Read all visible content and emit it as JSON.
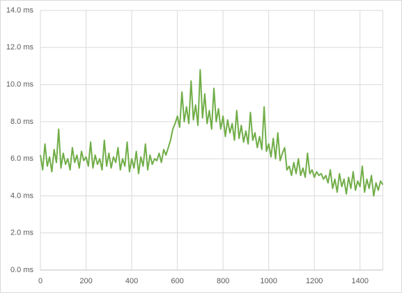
{
  "chart_data": {
    "type": "line",
    "x": [
      0,
      10,
      20,
      30,
      40,
      50,
      60,
      70,
      80,
      90,
      100,
      110,
      120,
      130,
      140,
      150,
      160,
      170,
      180,
      190,
      200,
      210,
      220,
      230,
      240,
      250,
      260,
      270,
      280,
      290,
      300,
      310,
      320,
      330,
      340,
      350,
      360,
      370,
      380,
      390,
      400,
      410,
      420,
      430,
      440,
      450,
      460,
      470,
      480,
      490,
      500,
      510,
      520,
      530,
      540,
      550,
      560,
      570,
      580,
      590,
      600,
      610,
      620,
      630,
      640,
      650,
      660,
      670,
      680,
      690,
      700,
      710,
      720,
      730,
      740,
      750,
      760,
      770,
      780,
      790,
      800,
      810,
      820,
      830,
      840,
      850,
      860,
      870,
      880,
      890,
      900,
      910,
      920,
      930,
      940,
      950,
      960,
      970,
      980,
      990,
      1000,
      1010,
      1020,
      1030,
      1040,
      1050,
      1060,
      1070,
      1080,
      1090,
      1100,
      1110,
      1120,
      1130,
      1140,
      1150,
      1160,
      1170,
      1180,
      1190,
      1200,
      1210,
      1220,
      1230,
      1240,
      1250,
      1260,
      1270,
      1280,
      1290,
      1300,
      1310,
      1320,
      1330,
      1340,
      1350,
      1360,
      1370,
      1380,
      1390,
      1400,
      1410,
      1420,
      1430,
      1440,
      1450,
      1460,
      1470,
      1480,
      1490,
      1500
    ],
    "series": [
      {
        "color": "#70ad47",
        "values": [
          6.2,
          5.4,
          6.8,
          5.6,
          6.1,
          5.3,
          6.5,
          5.8,
          7.6,
          5.5,
          6.3,
          5.7,
          6.0,
          5.4,
          6.6,
          5.8,
          6.2,
          5.5,
          6.4,
          5.9,
          6.1,
          5.6,
          6.9,
          5.5,
          6.2,
          5.7,
          6.0,
          5.4,
          7.0,
          5.6,
          6.3,
          5.5,
          6.1,
          5.8,
          6.6,
          5.4,
          6.0,
          5.6,
          6.9,
          5.3,
          6.0,
          5.5,
          6.4,
          5.2,
          6.1,
          5.6,
          6.8,
          5.4,
          6.2,
          5.7,
          6.0,
          5.9,
          6.3,
          5.8,
          6.5,
          6.2,
          6.6,
          7.0,
          7.6,
          7.9,
          8.3,
          7.7,
          9.6,
          8.0,
          8.8,
          7.9,
          10.2,
          8.1,
          8.9,
          7.8,
          10.8,
          8.2,
          9.5,
          7.9,
          8.6,
          7.6,
          9.8,
          8.0,
          8.7,
          7.6,
          8.3,
          7.2,
          8.1,
          7.4,
          7.9,
          7.0,
          8.6,
          7.1,
          7.8,
          6.9,
          7.5,
          6.8,
          8.5,
          7.0,
          7.4,
          6.6,
          7.2,
          6.5,
          8.8,
          6.4,
          6.8,
          6.1,
          7.1,
          6.0,
          7.4,
          5.9,
          6.3,
          6.6,
          5.4,
          5.6,
          5.1,
          5.8,
          5.2,
          6.0,
          5.1,
          5.5,
          5.0,
          6.3,
          5.2,
          5.4,
          5.0,
          5.3,
          5.1,
          5.2,
          4.9,
          5.1,
          4.7,
          5.4,
          4.4,
          4.9,
          4.2,
          5.2,
          4.5,
          4.9,
          4.1,
          5.0,
          4.4,
          5.3,
          4.3,
          4.8,
          4.5,
          5.6,
          4.2,
          4.9,
          4.4,
          5.1,
          4.0,
          4.7,
          4.3,
          4.8,
          4.6
        ]
      }
    ],
    "xlim": [
      0,
      1500
    ],
    "xticks": [
      0,
      200,
      400,
      600,
      800,
      1000,
      1200,
      1400
    ],
    "ylim": [
      0,
      14
    ],
    "yticks": [
      {
        "value": 0,
        "label": "0.0 ms"
      },
      {
        "value": 2,
        "label": "2.0 ms"
      },
      {
        "value": 4,
        "label": "4.0 ms"
      },
      {
        "value": 6,
        "label": "6.0 ms"
      },
      {
        "value": 8,
        "label": "8.0 ms"
      },
      {
        "value": 10,
        "label": "10.0 ms"
      },
      {
        "value": 12,
        "label": "12.0 ms"
      },
      {
        "value": 14,
        "label": "14.0 ms"
      }
    ],
    "grid": true
  }
}
